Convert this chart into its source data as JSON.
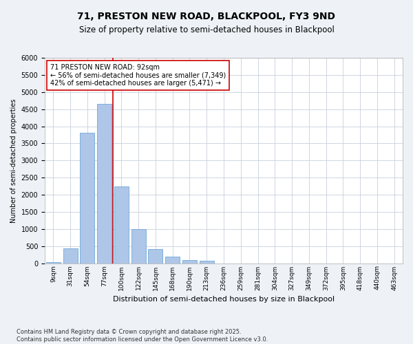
{
  "title1": "71, PRESTON NEW ROAD, BLACKPOOL, FY3 9ND",
  "title2": "Size of property relative to semi-detached houses in Blackpool",
  "xlabel": "Distribution of semi-detached houses by size in Blackpool",
  "ylabel": "Number of semi-detached properties",
  "categories": [
    "9sqm",
    "31sqm",
    "54sqm",
    "77sqm",
    "100sqm",
    "122sqm",
    "145sqm",
    "168sqm",
    "190sqm",
    "213sqm",
    "236sqm",
    "259sqm",
    "281sqm",
    "304sqm",
    "327sqm",
    "349sqm",
    "372sqm",
    "395sqm",
    "418sqm",
    "440sqm",
    "463sqm"
  ],
  "values": [
    30,
    430,
    3800,
    4650,
    2250,
    1000,
    420,
    200,
    100,
    80,
    0,
    0,
    0,
    0,
    0,
    0,
    0,
    0,
    0,
    0,
    0
  ],
  "bar_color": "#aec6e8",
  "bar_edge_color": "#6ea8d8",
  "vline_color": "#cc0000",
  "vline_pos": 3.5,
  "ylim": [
    0,
    6000
  ],
  "yticks": [
    0,
    500,
    1000,
    1500,
    2000,
    2500,
    3000,
    3500,
    4000,
    4500,
    5000,
    5500,
    6000
  ],
  "annotation_title": "71 PRESTON NEW ROAD: 92sqm",
  "annotation_line1": "← 56% of semi-detached houses are smaller (7,349)",
  "annotation_line2": "42% of semi-detached houses are larger (5,471) →",
  "annotation_box_color": "#ffffff",
  "annotation_border_color": "#cc0000",
  "footnote1": "Contains HM Land Registry data © Crown copyright and database right 2025.",
  "footnote2": "Contains public sector information licensed under the Open Government Licence v3.0.",
  "bg_color": "#eef2f7",
  "plot_bg_color": "#ffffff",
  "grid_color": "#c8d0da",
  "title1_fontsize": 10,
  "title2_fontsize": 8.5,
  "annotation_fontsize": 7,
  "footnote_fontsize": 6,
  "ylabel_fontsize": 7,
  "xlabel_fontsize": 8,
  "ytick_fontsize": 7,
  "xtick_fontsize": 6.5
}
